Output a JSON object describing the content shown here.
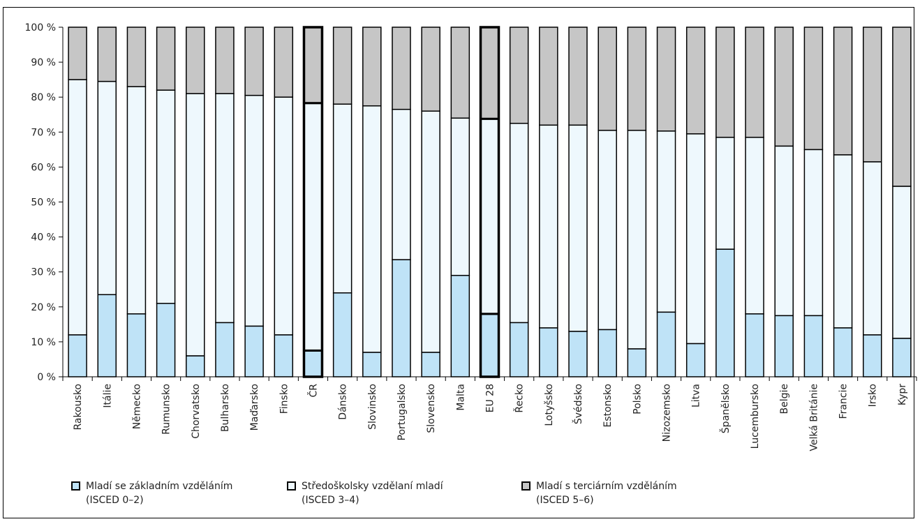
{
  "chart_data": {
    "type": "bar",
    "stacked": true,
    "ylim": [
      0,
      100
    ],
    "yticks": [
      "0 %",
      "10 %",
      "20 %",
      "30 %",
      "40 %",
      "50 %",
      "60 %",
      "70 %",
      "80 %",
      "90 %",
      "100 %"
    ],
    "categories": [
      "Rakousko",
      "Itálie",
      "Německo",
      "Rumunsko",
      "Chorvatsko",
      "Bulharsko",
      "Maďarsko",
      "Finsko",
      "ČR",
      "Dánsko",
      "Slovinsko",
      "Portugalsko",
      "Slovensko",
      "Malta",
      "EU 28",
      "Řecko",
      "Lotyšsko",
      "Švédsko",
      "Estonsko",
      "Polsko",
      "Nizozemsko",
      "Litva",
      "Španělsko",
      "Lucembursko",
      "Belgie",
      "Velká Británie",
      "Francie",
      "Irsko",
      "Kypr"
    ],
    "highlighted": [
      "ČR",
      "EU 28"
    ],
    "series": [
      {
        "name": "Mladí se základním vzděláním (ISCED 0-2)",
        "color": "#bfe3f7",
        "values": [
          12,
          23.5,
          18,
          21,
          6,
          15.5,
          14.5,
          12,
          7.5,
          24,
          7,
          33.5,
          7,
          29,
          18,
          15.5,
          14,
          13,
          13.5,
          8,
          18.5,
          9.5,
          36.5,
          18,
          17.5,
          17.5,
          14,
          12,
          11
        ]
      },
      {
        "name": "Středoškolsky vzdělaní mladí (ISCED 3-4)",
        "color": "#eef8fd",
        "values": [
          73,
          61,
          65,
          61,
          75,
          65.5,
          66,
          68,
          70.8,
          54,
          70.5,
          43,
          69,
          45,
          55.8,
          57,
          58,
          59,
          57,
          62.5,
          51.8,
          60,
          32,
          50.5,
          48.5,
          47.5,
          49.5,
          49.5,
          43.5
        ]
      },
      {
        "name": "Mladí s terciárním vzděláním (ISCED 5-6)",
        "color": "#c6c6c6",
        "values": [
          15,
          15.5,
          17,
          18,
          19,
          19,
          19.5,
          20,
          21.7,
          22,
          22.5,
          23.5,
          24,
          26,
          26.2,
          27.5,
          28,
          28,
          29.5,
          29.5,
          29.7,
          30.5,
          31.5,
          31.5,
          34,
          35,
          36.5,
          38.5,
          45.5
        ]
      }
    ]
  },
  "legend": {
    "items": [
      {
        "line1": "Mladí se základním vzděláním",
        "line2": "(ISCED 0–2)",
        "color": "#bfe3f7"
      },
      {
        "line1": "Středoškolsky vzdělaní mladí",
        "line2": "(ISCED 3–4)",
        "color": "#eef8fd"
      },
      {
        "line1": "Mladí s terciárním vzděláním",
        "line2": "(ISCED 5–6)",
        "color": "#c6c6c6"
      }
    ]
  }
}
